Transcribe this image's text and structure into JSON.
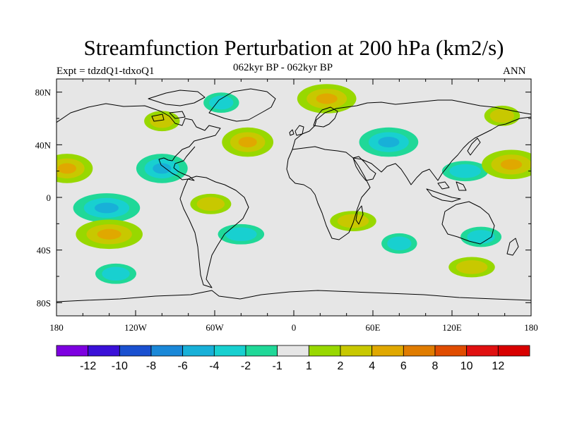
{
  "title": "Streamfunction Perturbation at 200 hPa (km2/s)",
  "subtitle_left": "Expt = tdzdQ1-tdxoQ1",
  "subtitle_center": "062kyr BP - 062kyr BP",
  "subtitle_right": "ANN",
  "chart_data": {
    "type": "contour-map",
    "projection": "cylindrical equidistant",
    "variable": "Streamfunction Perturbation at 200 hPa",
    "units": "km2/s",
    "x_ticks": [
      "180",
      "120W",
      "60W",
      "0",
      "60E",
      "120E",
      "180"
    ],
    "y_ticks": [
      "80N",
      "40N",
      "0",
      "40S",
      "80S"
    ],
    "lon_range": [
      -180,
      180
    ],
    "lat_range": [
      -90,
      90
    ],
    "levels": [
      -12,
      -10,
      -8,
      -6,
      -4,
      -2,
      -1,
      1,
      2,
      4,
      6,
      8,
      10,
      12
    ],
    "colorbar_labels": [
      "-12",
      "-10",
      "-8",
      "-6",
      "-4",
      "-2",
      "-1",
      "1",
      "2",
      "4",
      "6",
      "8",
      "10",
      "12"
    ],
    "colors": [
      "#7d00e0",
      "#3a10d8",
      "#1a50d0",
      "#1a88d8",
      "#18b0d8",
      "#18d0d0",
      "#20d898",
      "#e6e6e6",
      "#98d800",
      "#c8c800",
      "#e0a800",
      "#e07c00",
      "#e04c00",
      "#e01010",
      "#d80000"
    ],
    "background_color": "#e6e6e6",
    "regions": [
      {
        "sign": "negative",
        "peak": -4,
        "lon": -100,
        "lat": 22
      },
      {
        "sign": "negative",
        "peak": -4,
        "lon": 72,
        "lat": 42
      },
      {
        "sign": "negative",
        "peak": -4,
        "lon": -142,
        "lat": -8
      },
      {
        "sign": "negative",
        "peak": -2,
        "lon": -55,
        "lat": 72
      },
      {
        "sign": "negative",
        "peak": -2,
        "lon": -135,
        "lat": -58
      },
      {
        "sign": "negative",
        "peak": -2,
        "lon": -40,
        "lat": -28
      },
      {
        "sign": "negative",
        "peak": -2,
        "lon": 80,
        "lat": -35
      },
      {
        "sign": "negative",
        "peak": -2,
        "lon": 142,
        "lat": -30
      },
      {
        "sign": "negative",
        "peak": -2,
        "lon": 130,
        "lat": 20
      },
      {
        "sign": "positive",
        "peak": 4,
        "lon": -172,
        "lat": 22
      },
      {
        "sign": "positive",
        "peak": 4,
        "lon": 165,
        "lat": 25
      },
      {
        "sign": "positive",
        "peak": 4,
        "lon": -140,
        "lat": -28
      },
      {
        "sign": "positive",
        "peak": 4,
        "lon": -35,
        "lat": 42
      },
      {
        "sign": "positive",
        "peak": 4,
        "lon": 25,
        "lat": 75
      },
      {
        "sign": "positive",
        "peak": 2,
        "lon": 45,
        "lat": -18
      },
      {
        "sign": "positive",
        "peak": 2,
        "lon": -100,
        "lat": 58
      },
      {
        "sign": "positive",
        "peak": 2,
        "lon": -63,
        "lat": -5
      },
      {
        "sign": "positive",
        "peak": 2,
        "lon": 135,
        "lat": -53
      },
      {
        "sign": "positive",
        "peak": 2,
        "lon": 158,
        "lat": 62
      }
    ]
  }
}
